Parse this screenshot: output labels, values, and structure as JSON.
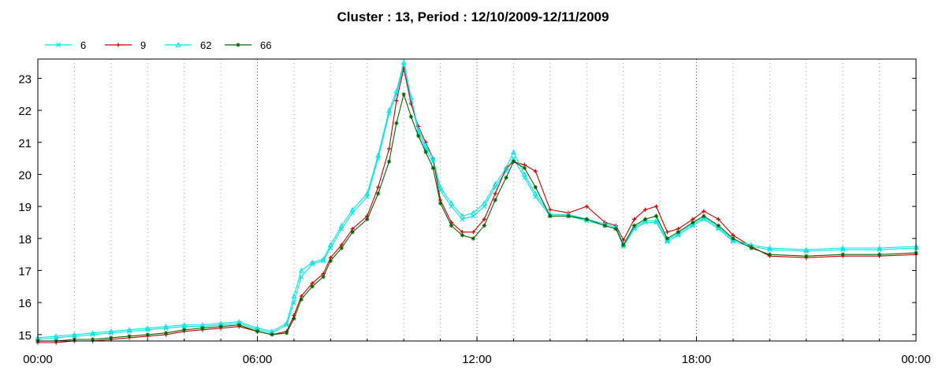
{
  "chart_data": {
    "type": "line",
    "title": "Cluster : 13, Period : 12/10/2009-12/11/2009",
    "xlabel": "",
    "ylabel": "",
    "x_range_hours": [
      0,
      24
    ],
    "x_ticks": [
      "00:00",
      "06:00",
      "12:00",
      "18:00",
      "00:00"
    ],
    "y_ticks": [
      15,
      16,
      17,
      18,
      19,
      20,
      21,
      22,
      23
    ],
    "ylim": [
      14.8,
      23.6
    ],
    "grid": true,
    "legend_position": "top-left",
    "series": [
      {
        "name": "6",
        "color": "#00e5e5",
        "marker": "x",
        "x": [
          0,
          0.5,
          1,
          1.5,
          2,
          2.5,
          3,
          3.5,
          4,
          4.5,
          5,
          5.5,
          6,
          6.4,
          6.8,
          7.0,
          7.2,
          7.5,
          7.8,
          8.0,
          8.3,
          8.6,
          9.0,
          9.3,
          9.6,
          9.8,
          10.0,
          10.2,
          10.4,
          10.6,
          10.8,
          11.0,
          11.3,
          11.6,
          11.9,
          12.2,
          12.5,
          12.8,
          13.0,
          13.3,
          13.6,
          14.0,
          14.5,
          15.0,
          15.5,
          15.8,
          16.0,
          16.3,
          16.6,
          16.9,
          17.2,
          17.5,
          17.9,
          18.2,
          18.6,
          19.0,
          19.5,
          20,
          21,
          22,
          23,
          24
        ],
        "y": [
          14.85,
          14.9,
          14.95,
          15.0,
          15.05,
          15.1,
          15.15,
          15.2,
          15.25,
          15.25,
          15.3,
          15.35,
          15.15,
          15.05,
          15.3,
          16.0,
          16.8,
          17.2,
          17.3,
          17.7,
          18.3,
          18.8,
          19.3,
          20.5,
          21.9,
          22.5,
          23.4,
          22.3,
          21.3,
          20.8,
          20.4,
          19.5,
          19.0,
          18.6,
          18.7,
          19.0,
          19.6,
          20.1,
          20.5,
          19.9,
          19.3,
          18.7,
          18.7,
          18.55,
          18.4,
          18.3,
          17.75,
          18.3,
          18.5,
          18.5,
          17.9,
          18.1,
          18.4,
          18.6,
          18.3,
          17.9,
          17.75,
          17.65,
          17.6,
          17.65,
          17.65,
          17.7
        ]
      },
      {
        "name": "9",
        "color": "#cc0000",
        "marker": "+",
        "x": [
          0,
          0.5,
          1,
          1.5,
          2,
          2.5,
          3,
          3.5,
          4,
          4.5,
          5,
          5.5,
          6,
          6.4,
          6.8,
          7.0,
          7.2,
          7.5,
          7.8,
          8.0,
          8.3,
          8.6,
          9.0,
          9.3,
          9.6,
          9.8,
          10.0,
          10.2,
          10.4,
          10.6,
          10.8,
          11.0,
          11.3,
          11.6,
          11.9,
          12.2,
          12.5,
          12.8,
          13.0,
          13.3,
          13.6,
          14.0,
          14.5,
          15.0,
          15.5,
          15.8,
          16.0,
          16.3,
          16.6,
          16.9,
          17.2,
          17.5,
          17.9,
          18.2,
          18.6,
          19.0,
          19.5,
          20,
          21,
          22,
          23,
          24
        ],
        "y": [
          14.75,
          14.75,
          14.8,
          14.8,
          14.85,
          14.9,
          14.95,
          15.0,
          15.1,
          15.15,
          15.2,
          15.25,
          15.1,
          15.0,
          15.1,
          15.6,
          16.2,
          16.6,
          16.9,
          17.4,
          17.8,
          18.3,
          18.7,
          19.6,
          20.8,
          22.3,
          23.3,
          22.2,
          21.5,
          21.0,
          20.5,
          19.2,
          18.5,
          18.2,
          18.2,
          18.6,
          19.4,
          20.2,
          20.4,
          20.3,
          20.1,
          18.9,
          18.8,
          19.0,
          18.5,
          18.4,
          17.95,
          18.6,
          18.9,
          19.0,
          18.2,
          18.3,
          18.6,
          18.85,
          18.6,
          18.1,
          17.75,
          17.45,
          17.4,
          17.45,
          17.45,
          17.5
        ]
      },
      {
        "name": "62",
        "color": "#00e5e5",
        "marker": "triangle",
        "x": [
          0,
          0.5,
          1,
          1.5,
          2,
          2.5,
          3,
          3.5,
          4,
          4.5,
          5,
          5.5,
          6,
          6.4,
          6.8,
          7.0,
          7.2,
          7.5,
          7.8,
          8.0,
          8.3,
          8.6,
          9.0,
          9.3,
          9.6,
          9.8,
          10.0,
          10.2,
          10.4,
          10.6,
          10.8,
          11.0,
          11.3,
          11.6,
          11.9,
          12.2,
          12.5,
          12.8,
          13.0,
          13.3,
          13.6,
          14.0,
          14.5,
          15.0,
          15.5,
          15.8,
          16.0,
          16.3,
          16.6,
          16.9,
          17.2,
          17.5,
          17.9,
          18.2,
          18.6,
          19.0,
          19.5,
          20,
          21,
          22,
          23,
          24
        ],
        "y": [
          14.9,
          14.95,
          15.0,
          15.05,
          15.1,
          15.15,
          15.2,
          15.25,
          15.3,
          15.3,
          15.35,
          15.4,
          15.2,
          15.1,
          15.35,
          16.2,
          17.0,
          17.25,
          17.35,
          17.8,
          18.4,
          18.9,
          19.4,
          20.6,
          22.0,
          22.6,
          23.5,
          22.4,
          21.4,
          20.9,
          20.5,
          19.6,
          19.1,
          18.7,
          18.8,
          19.1,
          19.7,
          20.2,
          20.7,
          20.0,
          19.4,
          18.75,
          18.75,
          18.6,
          18.45,
          18.35,
          17.8,
          18.35,
          18.55,
          18.55,
          17.95,
          18.15,
          18.45,
          18.65,
          18.35,
          17.95,
          17.8,
          17.7,
          17.65,
          17.7,
          17.7,
          17.75
        ]
      },
      {
        "name": "66",
        "color": "#006600",
        "marker": "star",
        "x": [
          0,
          0.5,
          1,
          1.5,
          2,
          2.5,
          3,
          3.5,
          4,
          4.5,
          5,
          5.5,
          6,
          6.4,
          6.8,
          7.0,
          7.2,
          7.5,
          7.8,
          8.0,
          8.3,
          8.6,
          9.0,
          9.3,
          9.6,
          9.8,
          10.0,
          10.2,
          10.4,
          10.6,
          10.8,
          11.0,
          11.3,
          11.6,
          11.9,
          12.2,
          12.5,
          12.8,
          13.0,
          13.3,
          13.6,
          14.0,
          14.5,
          15.0,
          15.5,
          15.8,
          16.0,
          16.3,
          16.6,
          16.9,
          17.2,
          17.5,
          17.9,
          18.2,
          18.6,
          19.0,
          19.5,
          20,
          21,
          22,
          23,
          24
        ],
        "y": [
          14.8,
          14.8,
          14.85,
          14.85,
          14.9,
          14.95,
          15.0,
          15.05,
          15.15,
          15.2,
          15.25,
          15.3,
          15.1,
          15.0,
          15.05,
          15.5,
          16.1,
          16.5,
          16.8,
          17.3,
          17.7,
          18.2,
          18.6,
          19.4,
          20.4,
          21.6,
          22.5,
          21.8,
          21.2,
          20.7,
          20.2,
          19.1,
          18.4,
          18.1,
          18.0,
          18.4,
          19.2,
          19.9,
          20.4,
          20.2,
          19.6,
          18.7,
          18.7,
          18.6,
          18.4,
          18.3,
          17.8,
          18.4,
          18.6,
          18.7,
          18.0,
          18.2,
          18.5,
          18.7,
          18.4,
          18.0,
          17.7,
          17.5,
          17.45,
          17.5,
          17.5,
          17.55
        ]
      }
    ]
  }
}
